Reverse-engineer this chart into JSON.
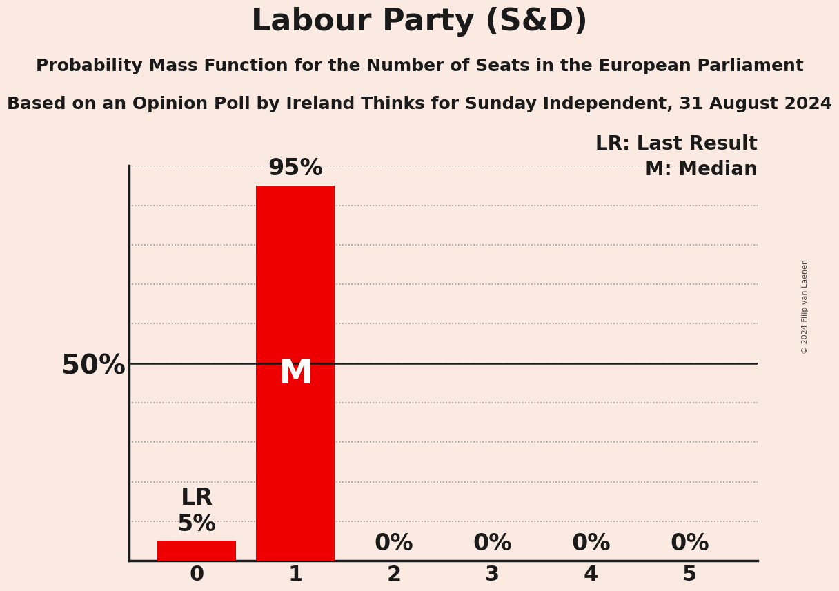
{
  "title": "Labour Party (S&D)",
  "subtitle1": "Probability Mass Function for the Number of Seats in the European Parliament",
  "subtitle2": "Based on an Opinion Poll by Ireland Thinks for Sunday Independent, 31 August 2024",
  "categories": [
    0,
    1,
    2,
    3,
    4,
    5
  ],
  "values": [
    5,
    95,
    0,
    0,
    0,
    0
  ],
  "bar_color": "#ee0000",
  "background_color": "#faeae2",
  "text_color": "#1a1a1a",
  "ylim": [
    0,
    100
  ],
  "yticks": [
    0,
    10,
    20,
    30,
    40,
    50,
    60,
    70,
    80,
    90,
    100
  ],
  "median_bar": 1,
  "last_result_bar": 0,
  "median_label": "M",
  "lr_label": "LR",
  "legend_lr": "LR: Last Result",
  "legend_m": "M: Median",
  "watermark": "© 2024 Filip van Laenen",
  "title_fontsize": 32,
  "subtitle_fontsize": 18,
  "tick_fontsize": 22,
  "bar_label_fontsize": 24,
  "legend_fontsize": 20,
  "median_fontsize": 36,
  "fifty_pct_fontsize": 28
}
